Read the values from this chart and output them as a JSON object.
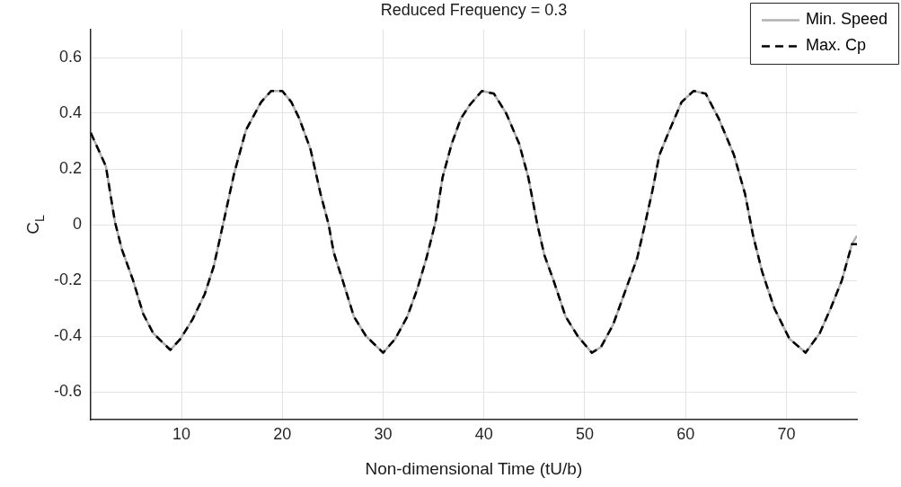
{
  "chart_data": {
    "type": "line",
    "title": "Reduced Frequency = 0.3",
    "xlabel": "Non-dimensional Time (tU/b)",
    "ylabel": "C$_{L}$",
    "x": [
      1,
      2.5,
      3.4,
      4.1,
      5.2,
      6.2,
      7.2,
      8.9,
      9.9,
      11.1,
      12.3,
      13.2,
      14.3,
      15.2,
      16.4,
      17.9,
      18.9,
      20,
      20.9,
      21.7,
      22.8,
      23.8,
      24.6,
      25.1,
      25.9,
      27.1,
      28.3,
      30,
      31.2,
      32.4,
      33.4,
      34.3,
      35.2,
      35.9,
      36.8,
      37.7,
      38.6,
      39.8,
      41,
      42.2,
      43.5,
      44.4,
      45.3,
      46,
      46.9,
      48.1,
      49.3,
      50.7,
      51.6,
      52.8,
      54.3,
      55.2,
      55.9,
      56.7,
      57.4,
      58.3,
      59.6,
      60.8,
      62,
      63.3,
      64.8,
      65.9,
      66.7,
      67.6,
      68.8,
      70.3,
      71.6,
      71.9,
      73.3,
      74.4,
      75.5,
      76.5,
      77
    ],
    "series": [
      {
        "name": "Min. Speed",
        "color": "#b0b0b0",
        "line_style": "solid",
        "values": [
          0.33,
          0.21,
          0.01,
          -0.09,
          -0.2,
          -0.32,
          -0.39,
          -0.45,
          -0.41,
          -0.34,
          -0.25,
          -0.15,
          0.03,
          0.18,
          0.34,
          0.44,
          0.48,
          0.48,
          0.44,
          0.38,
          0.27,
          0.11,
          0,
          -0.1,
          -0.19,
          -0.33,
          -0.4,
          -0.46,
          -0.41,
          -0.33,
          -0.23,
          -0.12,
          0.01,
          0.17,
          0.29,
          0.38,
          0.43,
          0.48,
          0.47,
          0.4,
          0.29,
          0.17,
          0,
          -0.11,
          -0.2,
          -0.33,
          -0.4,
          -0.46,
          -0.44,
          -0.36,
          -0.21,
          -0.12,
          -0.01,
          0.12,
          0.25,
          0.33,
          0.44,
          0.48,
          0.47,
          0.38,
          0.25,
          0.11,
          -0.04,
          -0.17,
          -0.3,
          -0.41,
          -0.45,
          -0.46,
          -0.39,
          -0.3,
          -0.2,
          -0.07,
          -0.04
        ]
      },
      {
        "name": "Max. Cp",
        "color": "#000000",
        "line_style": "dashed",
        "values": [
          0.33,
          0.21,
          0.01,
          -0.09,
          -0.2,
          -0.32,
          -0.39,
          -0.45,
          -0.41,
          -0.34,
          -0.25,
          -0.15,
          0.03,
          0.18,
          0.34,
          0.44,
          0.48,
          0.48,
          0.44,
          0.38,
          0.27,
          0.11,
          0,
          -0.1,
          -0.19,
          -0.33,
          -0.4,
          -0.46,
          -0.41,
          -0.33,
          -0.23,
          -0.12,
          0.01,
          0.17,
          0.29,
          0.38,
          0.43,
          0.48,
          0.47,
          0.4,
          0.29,
          0.17,
          0,
          -0.11,
          -0.2,
          -0.33,
          -0.4,
          -0.46,
          -0.44,
          -0.36,
          -0.21,
          -0.12,
          -0.01,
          0.12,
          0.25,
          0.33,
          0.44,
          0.48,
          0.47,
          0.38,
          0.25,
          0.11,
          -0.04,
          -0.17,
          -0.3,
          -0.41,
          -0.45,
          -0.46,
          -0.39,
          -0.3,
          -0.2,
          -0.07,
          -0.07
        ]
      }
    ],
    "xlim": [
      1,
      77
    ],
    "xticks": [
      10,
      20,
      30,
      40,
      50,
      60,
      70
    ],
    "ylim": [
      -0.7,
      0.7
    ],
    "yticks": [
      -0.6,
      -0.4,
      -0.2,
      0,
      0.2,
      0.4,
      0.6
    ],
    "grid": true,
    "legend": "top right",
    "marker": "none"
  }
}
